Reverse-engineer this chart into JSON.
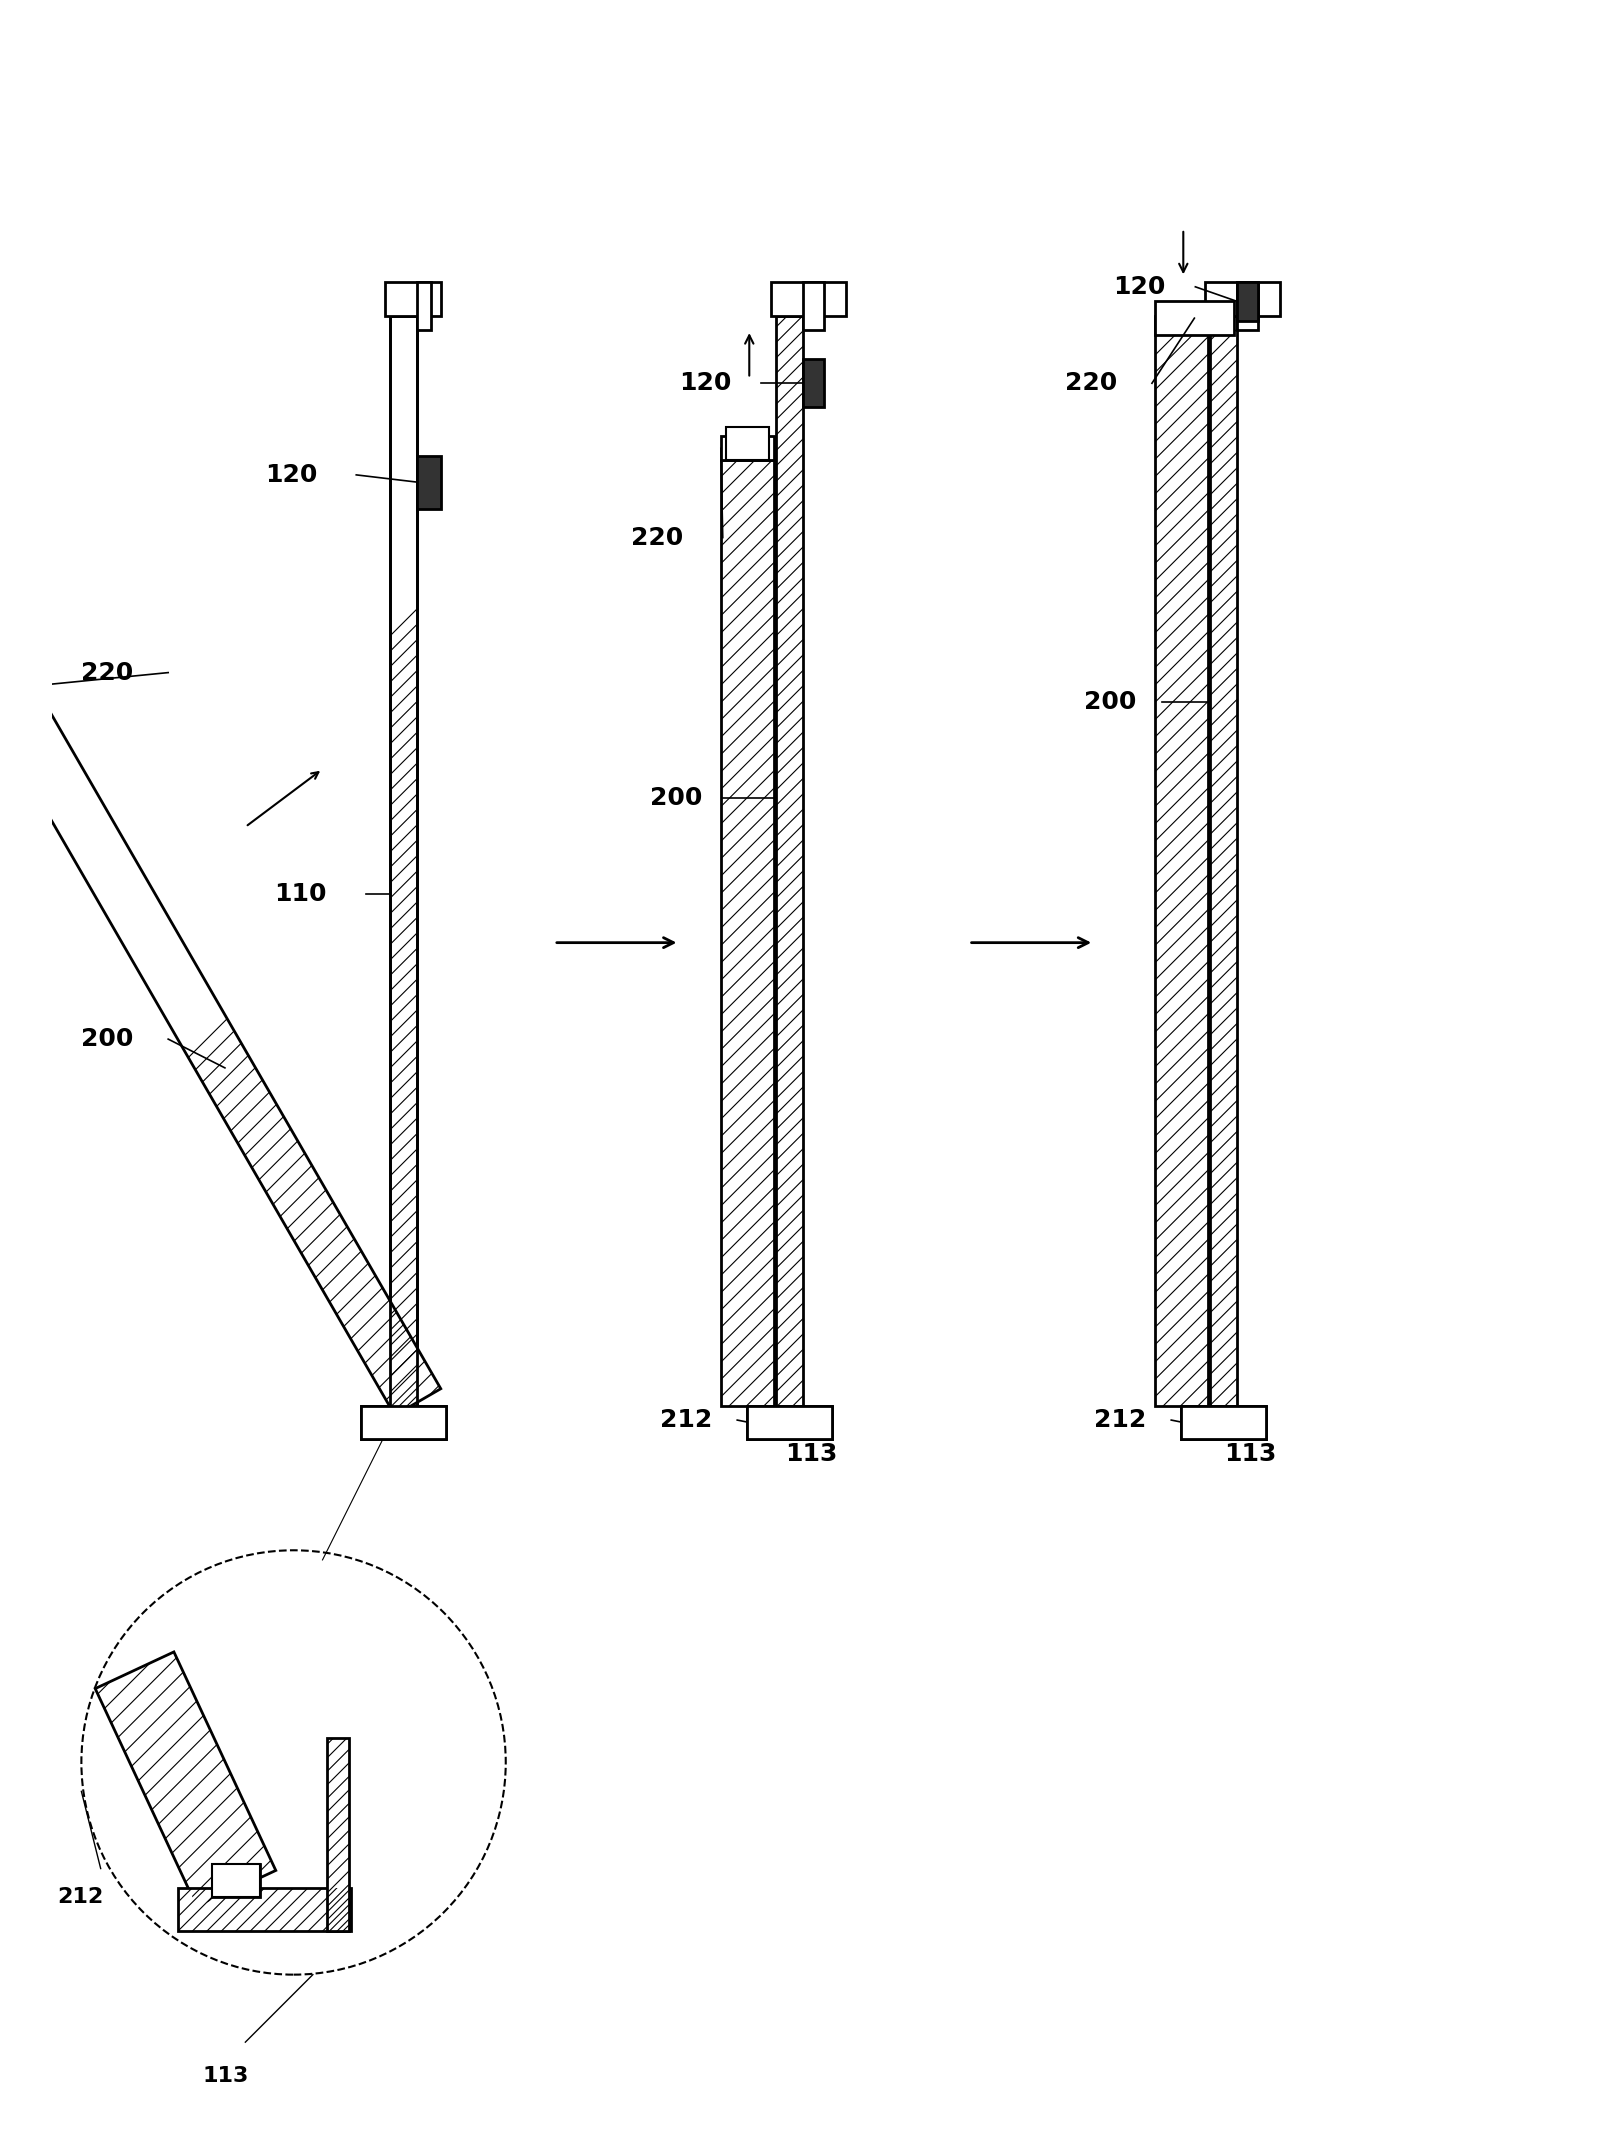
{
  "bg_color": "#ffffff",
  "line_color": "#000000",
  "hatch_color": "#000000",
  "label_fontsize": 18,
  "label_fontweight": "bold",
  "fig_width": 15.97,
  "fig_height": 21.38,
  "fig_dpi": 100
}
